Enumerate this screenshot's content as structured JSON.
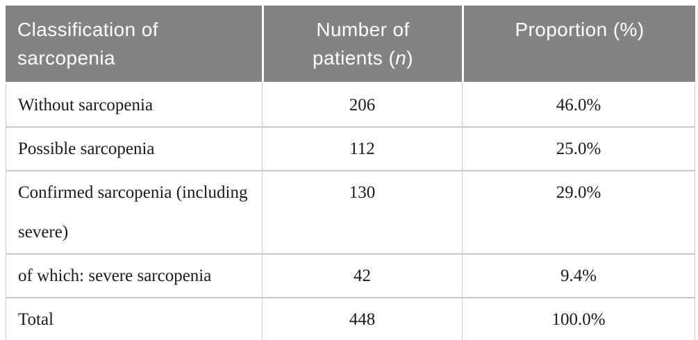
{
  "table": {
    "header": {
      "classification_label": "Classification of sarcopenia",
      "patients_label_prefix": "Number of patients (",
      "patients_label_n": "n",
      "patients_label_suffix": ")",
      "proportion_label": "Proportion (%)"
    },
    "rows": [
      {
        "classification": "Without sarcopenia",
        "patients": "206",
        "proportion": "46.0%"
      },
      {
        "classification": "Possible sarcopenia",
        "patients": "112",
        "proportion": "25.0%"
      },
      {
        "classification": "Confirmed sarcopenia (including severe)",
        "patients": "130",
        "proportion": "29.0%"
      },
      {
        "classification": "of which: severe sarcopenia",
        "patients": "42",
        "proportion": "9.4%"
      },
      {
        "classification": "Total",
        "patients": "448",
        "proportion": "100.0%"
      }
    ],
    "colors": {
      "header_background": "#838383",
      "header_text": "#ffffff",
      "body_text": "#1a1a1a",
      "grid_line": "#c8c8c8"
    }
  }
}
